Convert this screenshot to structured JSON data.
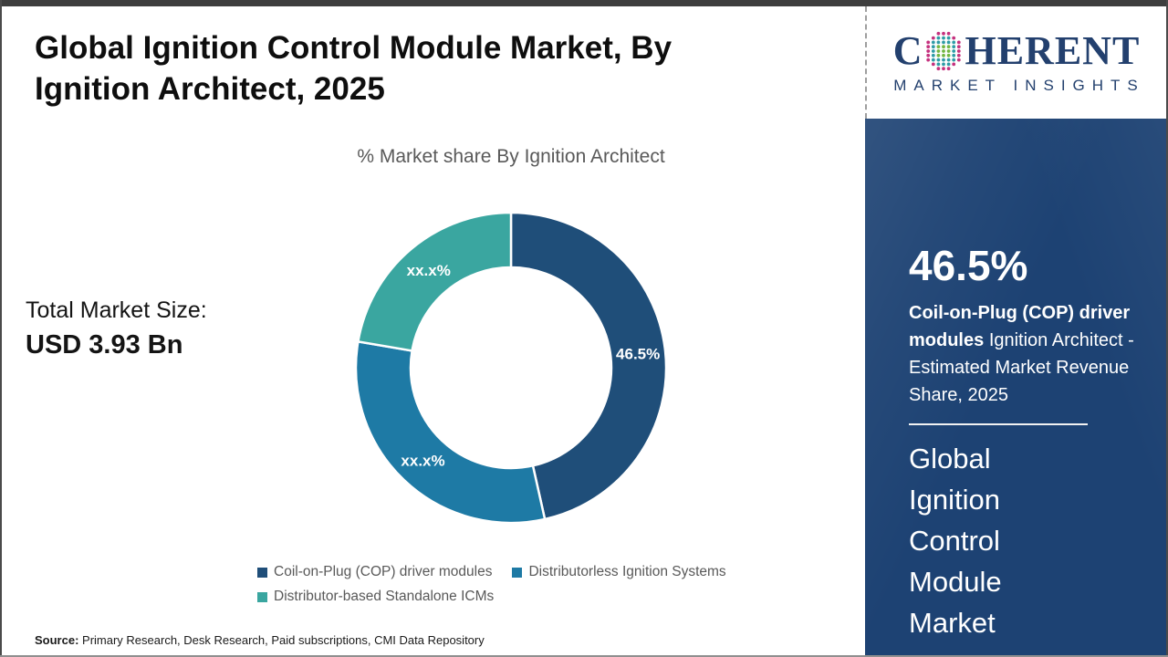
{
  "header": {
    "title": "Global Ignition Control Module Market, By Ignition Architect, 2025"
  },
  "chart_data": {
    "type": "pie",
    "variant": "donut",
    "title": "% Market share By Ignition Architect",
    "segments": [
      {
        "name": "Coil-on-Plug (COP) driver modules",
        "value": 46.5,
        "label": "46.5%",
        "color": "#1F4E79"
      },
      {
        "name": "Distributorless Ignition Systems",
        "value": 31.2,
        "label": "xx.x%",
        "color": "#1E7AA5"
      },
      {
        "name": "Distributor-based Standalone ICMs",
        "value": 22.3,
        "label": "xx.x%",
        "color": "#3AA6A0"
      }
    ],
    "start_angle_deg": 0,
    "inner_radius_ratio": 0.647,
    "legend_position": "bottom",
    "label_color": "#FFFFFF"
  },
  "market_size": {
    "label": "Total Market Size:",
    "value": "USD 3.93 Bn"
  },
  "source": {
    "label": "Source:",
    "text": "Primary Research, Desk Research, Paid subscriptions, CMI Data Repository"
  },
  "sidebar": {
    "logo": {
      "word_start": "C",
      "word_end": "HERENT",
      "tagline": "MARKET INSIGHTS",
      "text_color": "#23406E",
      "dot_colors": {
        "outer": "#C5317E",
        "mid": "#2E9CA6",
        "inner": "#72B742"
      }
    },
    "panel_color": "#1D4273",
    "highlight": {
      "percent": "46.5%",
      "segment": "Coil-on-Plug (COP) driver modules",
      "description": "Ignition Architect - Estimated Market Revenue Share, 2025"
    },
    "report_title": "Global Ignition Control Module Market"
  }
}
